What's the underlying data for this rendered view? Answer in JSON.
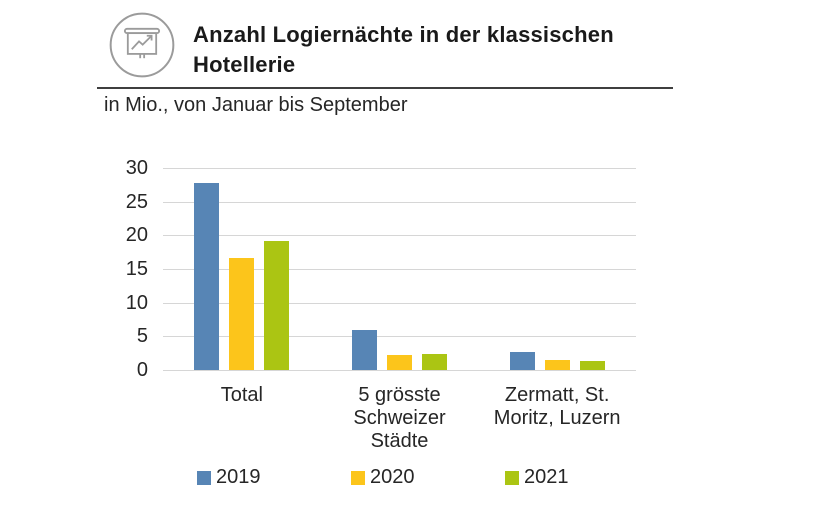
{
  "header": {
    "icon": "presentation-chart-icon",
    "title": "Anzahl Logiernächte in der klassischen Hotellerie",
    "subtitle": "in Mio., von Januar bis September"
  },
  "colors": {
    "series_2019": "#5785b5",
    "series_2020": "#fcc51b",
    "series_2021": "#abc513",
    "grid": "#d6d6d6",
    "text": "#262626",
    "icon_stroke": "#9b9b9b"
  },
  "chart_data": {
    "type": "bar",
    "title": "Anzahl Logiernächte in der klassischen Hotellerie",
    "subtitle": "in Mio., von Januar bis September",
    "unit": "Mio.",
    "categories": [
      "Total",
      "5 grösste Schweizer Städte",
      "Zermatt, St. Moritz, Luzern"
    ],
    "category_label_lines": [
      [
        "Total"
      ],
      [
        "5 grösste",
        "Schweizer",
        "Städte"
      ],
      [
        "Zermatt, St.",
        "Moritz, Luzern"
      ]
    ],
    "series": [
      {
        "name": "2019",
        "color": "#5785b5",
        "values": [
          27.8,
          6.0,
          2.6
        ]
      },
      {
        "name": "2020",
        "color": "#fcc51b",
        "values": [
          16.6,
          2.2,
          1.5
        ]
      },
      {
        "name": "2021",
        "color": "#abc513",
        "values": [
          19.1,
          2.4,
          1.4
        ]
      }
    ],
    "xlabel": "",
    "ylabel": "",
    "ylim": [
      0,
      30
    ],
    "ytick_step": 5,
    "yticks": [
      0,
      5,
      10,
      15,
      20,
      25,
      30
    ],
    "grid": true,
    "legend_position": "bottom"
  }
}
